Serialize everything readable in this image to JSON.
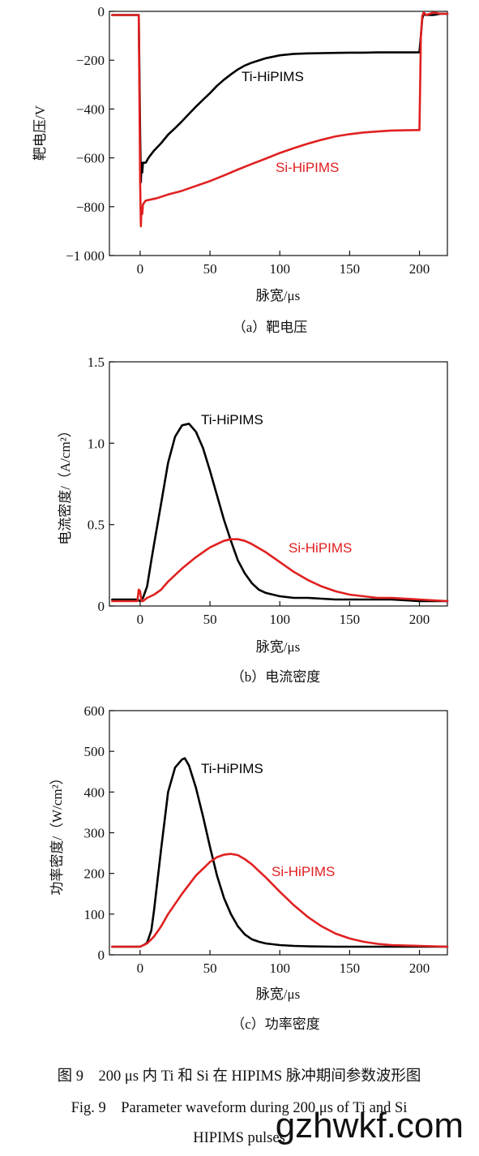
{
  "chart_data": [
    {
      "type": "line",
      "subcaption": "（a）靶电压",
      "xlabel": "脉宽/μs",
      "ylabel": "靶电压/V",
      "xlim": [
        -22,
        220
      ],
      "ylim": [
        -1000,
        0
      ],
      "xticks": [
        0,
        50,
        100,
        150,
        200
      ],
      "yticks": [
        0,
        -200,
        -400,
        -600,
        -800,
        -1000
      ],
      "ytick_labels": [
        "0",
        "−200",
        "−400",
        "−600",
        "−800",
        "−1 000"
      ],
      "series": [
        {
          "name": "Ti-HiPIMS",
          "color": "#000000",
          "x": [
            -20,
            -3,
            -1,
            0,
            0.5,
            1,
            1.5,
            2,
            4,
            6,
            10,
            15,
            20,
            25,
            30,
            35,
            40,
            45,
            50,
            55,
            60,
            65,
            70,
            75,
            80,
            90,
            100,
            110,
            120,
            130,
            140,
            150,
            160,
            170,
            180,
            190,
            199,
            200,
            201,
            202,
            203,
            205,
            210,
            215,
            220
          ],
          "y": [
            -15,
            -15,
            -15,
            -500,
            -700,
            -620,
            -660,
            -620,
            -620,
            -600,
            -570,
            -540,
            -505,
            -478,
            -450,
            -420,
            -390,
            -362,
            -335,
            -305,
            -280,
            -258,
            -238,
            -222,
            -210,
            -192,
            -180,
            -174,
            -172,
            -171,
            -170,
            -169,
            -169,
            -168,
            -168,
            -168,
            -168,
            -168,
            -100,
            -30,
            -12,
            -15,
            -15,
            -10,
            -10
          ]
        },
        {
          "name": "Si-HiPIMS",
          "color": "#e02020",
          "x": [
            -20,
            -3,
            -1,
            0,
            0.5,
            1,
            1.5,
            2,
            4,
            8,
            12,
            20,
            30,
            40,
            50,
            60,
            70,
            80,
            90,
            100,
            110,
            120,
            130,
            140,
            150,
            160,
            170,
            180,
            190,
            199,
            200,
            200.5,
            201,
            202,
            203,
            205,
            210,
            215,
            220
          ],
          "y": [
            -15,
            -15,
            -15,
            -700,
            -880,
            -800,
            -830,
            -790,
            -775,
            -770,
            -765,
            -750,
            -735,
            -715,
            -695,
            -672,
            -648,
            -625,
            -603,
            -580,
            -560,
            -542,
            -526,
            -512,
            -503,
            -496,
            -492,
            -488,
            -487,
            -486,
            -486,
            -300,
            -100,
            -20,
            -5,
            -15,
            -5,
            -10,
            -10
          ]
        }
      ]
    },
    {
      "type": "line",
      "subcaption": "（b）电流密度",
      "xlabel": "脉宽/μs",
      "ylabel": "电流密度/（A/cm²）",
      "xlim": [
        -22,
        220
      ],
      "ylim": [
        0,
        1.5
      ],
      "xticks": [
        0,
        50,
        100,
        150,
        200
      ],
      "yticks": [
        0,
        0.5,
        1.0,
        1.5
      ],
      "ytick_labels": [
        "0",
        "0.5",
        "1.0",
        "1.5"
      ],
      "series": [
        {
          "name": "Ti-HiPIMS",
          "color": "#000000",
          "x": [
            -20,
            -2,
            0,
            2,
            5,
            8,
            10,
            15,
            20,
            25,
            30,
            35,
            40,
            45,
            50,
            55,
            60,
            65,
            70,
            75,
            80,
            85,
            90,
            100,
            110,
            120,
            130,
            140,
            160,
            180,
            200,
            220
          ],
          "y": [
            0.04,
            0.04,
            0.03,
            0.05,
            0.12,
            0.28,
            0.38,
            0.63,
            0.88,
            1.04,
            1.11,
            1.12,
            1.07,
            0.97,
            0.83,
            0.68,
            0.53,
            0.4,
            0.28,
            0.2,
            0.14,
            0.1,
            0.08,
            0.06,
            0.05,
            0.05,
            0.045,
            0.04,
            0.04,
            0.04,
            0.03,
            0.03
          ]
        },
        {
          "name": "Si-HiPIMS",
          "color": "#e02020",
          "x": [
            -20,
            -2,
            -1,
            0,
            1,
            2,
            5,
            10,
            15,
            20,
            30,
            40,
            50,
            55,
            60,
            65,
            70,
            75,
            80,
            90,
            100,
            110,
            120,
            130,
            140,
            150,
            160,
            170,
            180,
            200,
            220
          ],
          "y": [
            0.03,
            0.03,
            0.1,
            0.09,
            0.03,
            0.03,
            0.05,
            0.07,
            0.1,
            0.15,
            0.23,
            0.3,
            0.36,
            0.38,
            0.4,
            0.41,
            0.41,
            0.4,
            0.38,
            0.33,
            0.27,
            0.21,
            0.16,
            0.12,
            0.09,
            0.07,
            0.06,
            0.05,
            0.05,
            0.04,
            0.03
          ]
        }
      ]
    },
    {
      "type": "line",
      "subcaption": "（c）功率密度",
      "xlabel": "脉宽/μs",
      "ylabel": "功率密度/（W/cm²）",
      "xlim": [
        -22,
        220
      ],
      "ylim": [
        0,
        600
      ],
      "xticks": [
        0,
        50,
        100,
        150,
        200
      ],
      "yticks": [
        0,
        100,
        200,
        300,
        400,
        500,
        600
      ],
      "ytick_labels": [
        "0",
        "100",
        "200",
        "300",
        "400",
        "500",
        "600"
      ],
      "series": [
        {
          "name": "Ti-HiPIMS",
          "color": "#000000",
          "x": [
            -20,
            -2,
            0,
            3,
            5,
            8,
            10,
            15,
            20,
            25,
            30,
            32,
            35,
            40,
            45,
            50,
            55,
            60,
            65,
            70,
            75,
            80,
            85,
            90,
            100,
            110,
            120,
            140,
            160,
            200,
            220
          ],
          "y": [
            20,
            20,
            20,
            25,
            30,
            60,
            110,
            260,
            400,
            460,
            480,
            483,
            465,
            410,
            340,
            265,
            195,
            140,
            100,
            70,
            50,
            38,
            32,
            28,
            24,
            22,
            21,
            20,
            20,
            20,
            20
          ]
        },
        {
          "name": "Si-HiPIMS",
          "color": "#e02020",
          "x": [
            -20,
            -2,
            0,
            5,
            10,
            15,
            20,
            30,
            40,
            50,
            55,
            60,
            65,
            70,
            75,
            80,
            90,
            100,
            110,
            120,
            130,
            140,
            150,
            160,
            170,
            180,
            200,
            220
          ],
          "y": [
            20,
            20,
            20,
            28,
            45,
            70,
            100,
            150,
            195,
            228,
            240,
            246,
            248,
            245,
            235,
            222,
            190,
            155,
            122,
            93,
            70,
            52,
            40,
            32,
            27,
            24,
            22,
            20
          ]
        }
      ]
    }
  ],
  "caption": {
    "zh": "图 9　200 μs 内 Ti 和 Si 在 HIPIMS 脉冲期间参数波形图",
    "en_line1": "Fig. 9　Parameter waveform during 200 μs of Ti and Si",
    "en_line2": "HIPIMS pulses"
  },
  "watermark": "gzhwkf.com"
}
